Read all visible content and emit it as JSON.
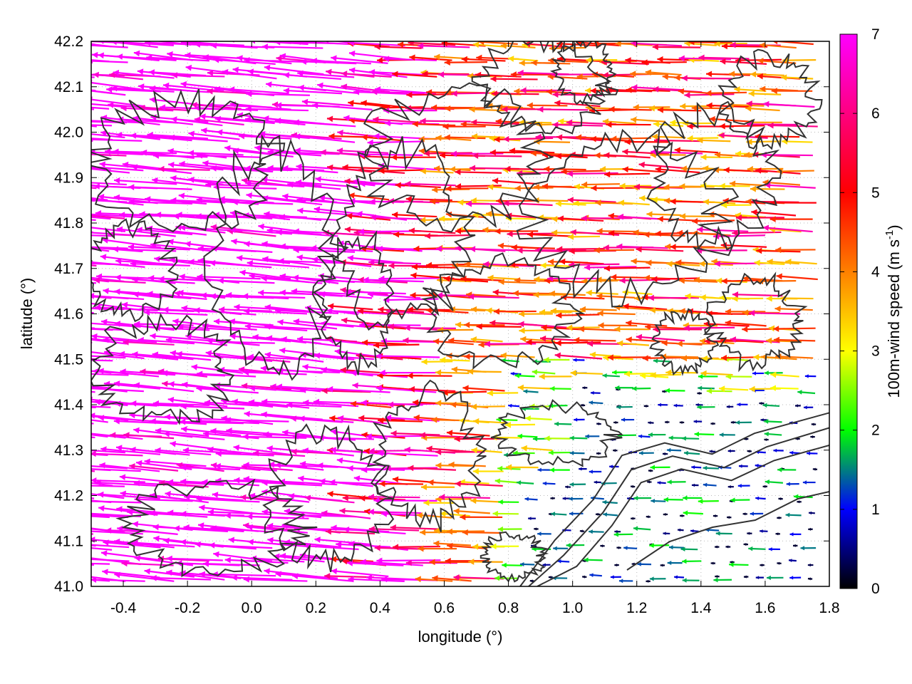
{
  "chart_data": {
    "type": "vector-field",
    "title": "",
    "xlabel": "longitude (°)",
    "ylabel": "latitude (°)",
    "xlim": [
      -0.5,
      1.8
    ],
    "ylim": [
      41.0,
      42.2
    ],
    "xticks": [
      -0.4,
      -0.2,
      0.0,
      0.2,
      0.4,
      0.6,
      0.8,
      1.0,
      1.2,
      1.4,
      1.6,
      1.8
    ],
    "xtick_labels": [
      "-0.4",
      "-0.2",
      "0.0",
      "0.2",
      "0.4",
      "0.6",
      "0.8",
      "1.0",
      "1.2",
      "1.4",
      "1.6",
      "1.8"
    ],
    "yticks": [
      41.0,
      41.1,
      41.2,
      41.3,
      41.4,
      41.5,
      41.6,
      41.7,
      41.8,
      41.9,
      42.0,
      42.1,
      42.2
    ],
    "ytick_labels": [
      "41.0",
      "41.1",
      "41.2",
      "41.3",
      "41.4",
      "41.5",
      "41.6",
      "41.7",
      "41.8",
      "41.9",
      "42.0",
      "42.1",
      "42.2"
    ],
    "grid": "dotted",
    "colorbar": {
      "label_main": "100m-wind speed (m s",
      "label_sup": "-1",
      "label_close": ")",
      "range": [
        0,
        7
      ],
      "ticks": [
        0,
        1,
        2,
        3,
        4,
        5,
        6,
        7
      ],
      "tick_labels": [
        "0",
        "1",
        "2",
        "3",
        "4",
        "5",
        "6",
        "7"
      ],
      "colors": [
        "#000000",
        "#0000ff",
        "#00ff00",
        "#ffff00",
        "#ff8000",
        "#ff0000",
        "#ff00ff"
      ]
    },
    "wind_field": {
      "direction": "westward (from the east)",
      "regions": [
        {
          "area": "west (lon < 0.4)",
          "speed": 7.0
        },
        {
          "area": "central / north (0.4 < lon < 1.5, lat > 41.5)",
          "speed": 4.5
        },
        {
          "area": "south-east coast (lon > 1.0, lat < 41.4)",
          "speed": 0.8
        }
      ]
    },
    "contours": {
      "color": "#333333",
      "description": "terrain elevation contours"
    }
  }
}
